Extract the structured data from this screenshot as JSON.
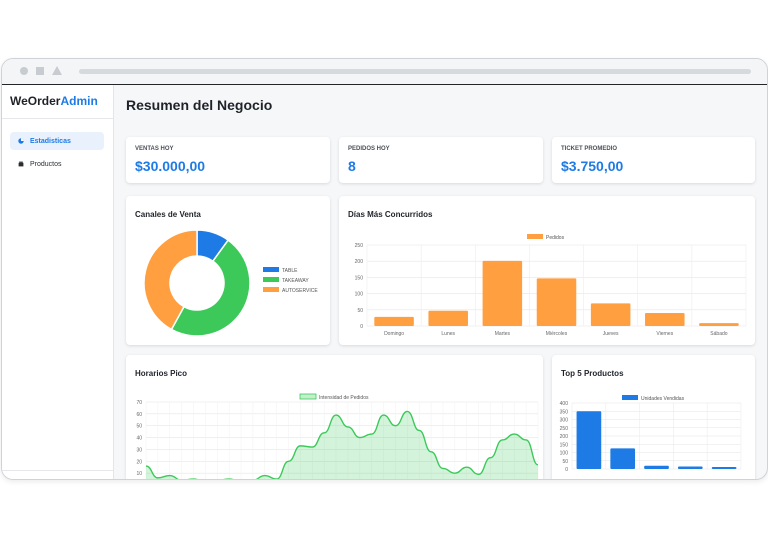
{
  "app": {
    "logo_main": "WeOrder",
    "logo_accent": "Admin"
  },
  "sidebar": {
    "items": [
      {
        "label": "Estadisticas",
        "icon": "pie-chart-icon",
        "active": true
      },
      {
        "label": "Productos",
        "icon": "box-icon",
        "active": false
      }
    ]
  },
  "page": {
    "title": "Resumen del Negocio"
  },
  "stats": [
    {
      "label": "VENTAS HOY",
      "value": "$30.000,00"
    },
    {
      "label": "PEDIDOS HOY",
      "value": "8"
    },
    {
      "label": "TICKET PROMEDIO",
      "value": "$3.750,00"
    }
  ],
  "colors": {
    "accent": "#1e7be6",
    "green": "#3cc95a",
    "orange": "#ff9f40"
  },
  "chart_data": [
    {
      "type": "pie",
      "title": "Canales de Venta",
      "legend_position": "right",
      "categories": [
        "TABLE",
        "TAKEAWAY",
        "AUTOSERVICE"
      ],
      "values": [
        10,
        48,
        42
      ],
      "colors": [
        "#1e7be6",
        "#3cc95a",
        "#ff9f40"
      ]
    },
    {
      "type": "bar",
      "title": "Días Más Concurridos",
      "legend": [
        "Pedidos"
      ],
      "legend_position": "top",
      "categories": [
        "Domingo",
        "Lunes",
        "Martes",
        "Miércoles",
        "Jueves",
        "Viernes",
        "Sábado"
      ],
      "series": [
        {
          "name": "Pedidos",
          "values": [
            28,
            47,
            201,
            147,
            70,
            40,
            9
          ]
        }
      ],
      "ylim": [
        0,
        250
      ],
      "yticks": [
        0,
        50,
        100,
        150,
        200,
        250
      ],
      "grid": true
    },
    {
      "type": "area",
      "title": "Horarios Pico",
      "legend": [
        "Intensidad de Pedidos"
      ],
      "legend_position": "top",
      "series": [
        {
          "name": "Intensidad de Pedidos",
          "values": [
            16,
            6,
            8,
            4,
            5,
            3,
            4,
            5,
            3,
            4,
            8,
            5,
            20,
            33,
            32,
            44,
            59,
            49,
            40,
            43,
            59,
            50,
            62,
            46,
            28,
            14,
            10,
            15,
            9,
            23,
            38,
            43,
            38,
            17
          ]
        }
      ],
      "ylim": [
        0,
        70
      ],
      "yticks": [
        10,
        20,
        30,
        40,
        50,
        60,
        70
      ],
      "grid": true
    },
    {
      "type": "bar",
      "title": "Top 5 Productos",
      "legend": [
        "Unidades Vendidas"
      ],
      "legend_position": "top",
      "series": [
        {
          "name": "Unidades Vendidas",
          "values": [
            350,
            125,
            20,
            15,
            12
          ]
        }
      ],
      "ylim": [
        0,
        400
      ],
      "yticks": [
        0,
        50,
        100,
        150,
        200,
        250,
        300,
        350,
        400
      ],
      "grid": true
    }
  ]
}
